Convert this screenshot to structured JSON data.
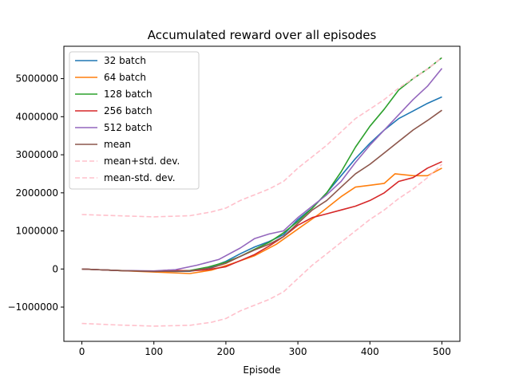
{
  "chart_data": {
    "type": "line",
    "title": "Accumulated reward over all episodes",
    "xlabel": "Episode",
    "ylabel": "",
    "xlim": [
      -25,
      525
    ],
    "ylim": [
      -1900000,
      5850000
    ],
    "x_ticks": [
      0,
      100,
      200,
      300,
      400,
      500
    ],
    "x_tick_labels": [
      "0",
      "100",
      "200",
      "300",
      "400",
      "500"
    ],
    "y_ticks": [
      -1000000,
      0,
      1000000,
      2000000,
      3000000,
      4000000,
      5000000
    ],
    "y_tick_labels": [
      "−1000000",
      "0",
      "1000000",
      "2000000",
      "3000000",
      "4000000",
      "5000000"
    ],
    "grid": false,
    "legend_position": "upper-left",
    "series": [
      {
        "name": "32 batch",
        "color": "#1f77b4",
        "dash": "solid",
        "points": [
          [
            0,
            0
          ],
          [
            50,
            -40000
          ],
          [
            100,
            -70000
          ],
          [
            150,
            -60000
          ],
          [
            175,
            20000
          ],
          [
            200,
            200000
          ],
          [
            220,
            400000
          ],
          [
            240,
            580000
          ],
          [
            260,
            720000
          ],
          [
            280,
            900000
          ],
          [
            300,
            1300000
          ],
          [
            320,
            1600000
          ],
          [
            340,
            2000000
          ],
          [
            360,
            2450000
          ],
          [
            380,
            2900000
          ],
          [
            400,
            3300000
          ],
          [
            420,
            3650000
          ],
          [
            440,
            3950000
          ],
          [
            460,
            4150000
          ],
          [
            480,
            4350000
          ],
          [
            500,
            4520000
          ]
        ]
      },
      {
        "name": "64 batch",
        "color": "#ff7f0e",
        "dash": "solid",
        "points": [
          [
            0,
            0
          ],
          [
            50,
            -40000
          ],
          [
            100,
            -80000
          ],
          [
            150,
            -120000
          ],
          [
            180,
            -30000
          ],
          [
            210,
            150000
          ],
          [
            240,
            350000
          ],
          [
            270,
            650000
          ],
          [
            300,
            1050000
          ],
          [
            330,
            1450000
          ],
          [
            360,
            1900000
          ],
          [
            380,
            2150000
          ],
          [
            400,
            2200000
          ],
          [
            420,
            2250000
          ],
          [
            435,
            2500000
          ],
          [
            460,
            2450000
          ],
          [
            480,
            2450000
          ],
          [
            500,
            2650000
          ]
        ]
      },
      {
        "name": "128 batch",
        "color": "#2ca02c",
        "dash": "solid",
        "points": [
          [
            0,
            0
          ],
          [
            50,
            -40000
          ],
          [
            100,
            -60000
          ],
          [
            150,
            -40000
          ],
          [
            175,
            50000
          ],
          [
            200,
            180000
          ],
          [
            220,
            330000
          ],
          [
            240,
            520000
          ],
          [
            260,
            700000
          ],
          [
            280,
            950000
          ],
          [
            300,
            1250000
          ],
          [
            320,
            1600000
          ],
          [
            340,
            2000000
          ],
          [
            360,
            2550000
          ],
          [
            380,
            3200000
          ],
          [
            400,
            3750000
          ],
          [
            420,
            4200000
          ],
          [
            440,
            4700000
          ],
          [
            460,
            5000000
          ],
          [
            480,
            5250000
          ],
          [
            500,
            5550000
          ]
        ]
      },
      {
        "name": "256 batch",
        "color": "#d62728",
        "dash": "solid",
        "points": [
          [
            0,
            0
          ],
          [
            50,
            -40000
          ],
          [
            100,
            -60000
          ],
          [
            120,
            -30000
          ],
          [
            150,
            -50000
          ],
          [
            175,
            -20000
          ],
          [
            200,
            60000
          ],
          [
            220,
            220000
          ],
          [
            240,
            380000
          ],
          [
            260,
            600000
          ],
          [
            280,
            850000
          ],
          [
            300,
            1150000
          ],
          [
            320,
            1350000
          ],
          [
            340,
            1450000
          ],
          [
            360,
            1550000
          ],
          [
            380,
            1650000
          ],
          [
            400,
            1800000
          ],
          [
            420,
            2000000
          ],
          [
            440,
            2300000
          ],
          [
            460,
            2400000
          ],
          [
            480,
            2650000
          ],
          [
            500,
            2820000
          ]
        ]
      },
      {
        "name": "512 batch",
        "color": "#9467bd",
        "dash": "solid",
        "points": [
          [
            0,
            0
          ],
          [
            50,
            -40000
          ],
          [
            100,
            -50000
          ],
          [
            130,
            -20000
          ],
          [
            160,
            100000
          ],
          [
            190,
            250000
          ],
          [
            220,
            550000
          ],
          [
            240,
            800000
          ],
          [
            260,
            920000
          ],
          [
            280,
            1000000
          ],
          [
            300,
            1350000
          ],
          [
            320,
            1650000
          ],
          [
            340,
            1950000
          ],
          [
            360,
            2300000
          ],
          [
            380,
            2800000
          ],
          [
            400,
            3250000
          ],
          [
            420,
            3650000
          ],
          [
            440,
            4050000
          ],
          [
            460,
            4450000
          ],
          [
            480,
            4800000
          ],
          [
            500,
            5270000
          ]
        ]
      },
      {
        "name": "mean",
        "color": "#8c564b",
        "dash": "solid",
        "points": [
          [
            0,
            0
          ],
          [
            50,
            -40000
          ],
          [
            100,
            -65000
          ],
          [
            150,
            -50000
          ],
          [
            180,
            30000
          ],
          [
            200,
            150000
          ],
          [
            220,
            330000
          ],
          [
            240,
            500000
          ],
          [
            260,
            650000
          ],
          [
            280,
            850000
          ],
          [
            300,
            1200000
          ],
          [
            320,
            1550000
          ],
          [
            340,
            1800000
          ],
          [
            360,
            2150000
          ],
          [
            380,
            2500000
          ],
          [
            400,
            2750000
          ],
          [
            420,
            3050000
          ],
          [
            440,
            3350000
          ],
          [
            460,
            3650000
          ],
          [
            480,
            3900000
          ],
          [
            500,
            4170000
          ]
        ]
      },
      {
        "name": "mean+std. dev.",
        "color": "#ffc0cb",
        "dash": "dashed",
        "points": [
          [
            0,
            1430000
          ],
          [
            50,
            1400000
          ],
          [
            100,
            1370000
          ],
          [
            150,
            1400000
          ],
          [
            180,
            1500000
          ],
          [
            200,
            1600000
          ],
          [
            220,
            1800000
          ],
          [
            240,
            1950000
          ],
          [
            260,
            2100000
          ],
          [
            280,
            2300000
          ],
          [
            300,
            2650000
          ],
          [
            320,
            2950000
          ],
          [
            340,
            3250000
          ],
          [
            360,
            3600000
          ],
          [
            380,
            3950000
          ],
          [
            400,
            4200000
          ],
          [
            420,
            4450000
          ],
          [
            440,
            4750000
          ],
          [
            460,
            5000000
          ],
          [
            480,
            5250000
          ],
          [
            500,
            5550000
          ]
        ]
      },
      {
        "name": "mean-std. dev.",
        "color": "#ffc0cb",
        "dash": "dashed",
        "points": [
          [
            0,
            -1430000
          ],
          [
            50,
            -1470000
          ],
          [
            100,
            -1500000
          ],
          [
            150,
            -1480000
          ],
          [
            180,
            -1400000
          ],
          [
            200,
            -1300000
          ],
          [
            220,
            -1100000
          ],
          [
            240,
            -950000
          ],
          [
            260,
            -800000
          ],
          [
            280,
            -600000
          ],
          [
            300,
            -250000
          ],
          [
            320,
            100000
          ],
          [
            340,
            400000
          ],
          [
            360,
            700000
          ],
          [
            380,
            1000000
          ],
          [
            400,
            1300000
          ],
          [
            420,
            1550000
          ],
          [
            440,
            1850000
          ],
          [
            460,
            2100000
          ],
          [
            480,
            2400000
          ],
          [
            500,
            2750000
          ]
        ]
      }
    ]
  }
}
